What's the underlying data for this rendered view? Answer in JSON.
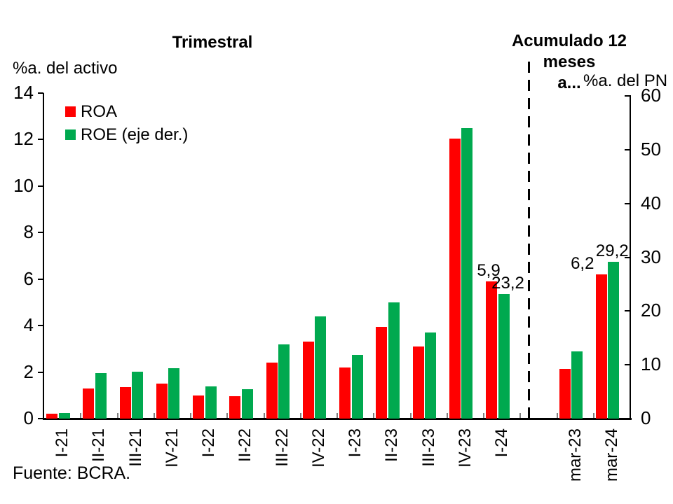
{
  "titles": {
    "left": "Trimestral",
    "right_line1": "Acumulado 12 meses",
    "right_line2": "a..."
  },
  "axis_labels": {
    "left": "%a. del activo",
    "right": "%a. del PN"
  },
  "legend": [
    {
      "label": "ROA",
      "color": "#ff0000"
    },
    {
      "label": "ROE (eje der.)",
      "color": "#00a94f"
    }
  ],
  "source": "Fuente: BCRA.",
  "colors": {
    "roa": "#ff0000",
    "roe": "#00a94f",
    "axis": "#000000",
    "x_tick_gray": "#7f7f7f"
  },
  "chart_data": {
    "type": "bar",
    "title_left": "Trimestral",
    "title_right": "Acumulado 12 meses a...",
    "left_axis": {
      "label": "%a. del activo",
      "range": [
        0,
        14
      ],
      "ticks": [
        0,
        2,
        4,
        6,
        8,
        10,
        12,
        14
      ]
    },
    "right_axis": {
      "label": "%a. del PN",
      "range": [
        0,
        60
      ],
      "ticks": [
        0,
        10,
        20,
        30,
        40,
        50,
        60
      ]
    },
    "series": [
      {
        "name": "ROA",
        "axis": "left",
        "color": "#ff0000"
      },
      {
        "name": "ROE (eje der.)",
        "axis": "right",
        "color": "#00a94f"
      }
    ],
    "groups": [
      {
        "name": "Trimestral",
        "categories": [
          "I-21",
          "II-21",
          "III-21",
          "IV-21",
          "I-22",
          "II-22",
          "III-22",
          "IV-22",
          "I-23",
          "II-23",
          "III-23",
          "IV-23",
          "I-24"
        ],
        "ROA": [
          0.2,
          1.3,
          1.35,
          1.5,
          1.0,
          0.95,
          2.4,
          3.3,
          2.2,
          3.95,
          3.1,
          12.05,
          5.9
        ],
        "ROE": [
          1.0,
          8.5,
          8.7,
          9.4,
          6.0,
          5.5,
          13.8,
          19.0,
          11.8,
          21.6,
          16.0,
          54.0,
          23.2
        ]
      },
      {
        "name": "Acumulado 12 meses a...",
        "categories": [
          "mar-23",
          "mar-24"
        ],
        "ROA": [
          2.15,
          6.2
        ],
        "ROE": [
          12.5,
          29.2
        ]
      }
    ],
    "data_labels": [
      {
        "category": "I-24",
        "series": "ROA",
        "text": "5,9"
      },
      {
        "category": "I-24",
        "series": "ROE",
        "text": "23,2"
      },
      {
        "category": "mar-24",
        "series": "ROA",
        "text": "6,2"
      },
      {
        "category": "mar-24",
        "series": "ROE",
        "text": "29,2"
      }
    ],
    "legend_position": "top-left-inside",
    "grid": false
  }
}
